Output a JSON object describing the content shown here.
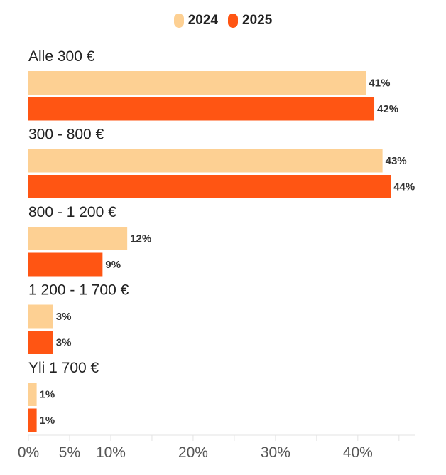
{
  "chart_data": {
    "type": "bar",
    "orientation": "horizontal",
    "categories": [
      "Alle 300 €",
      "300 - 800 €",
      "800 - 1 200 €",
      "1 200 - 1 700 €",
      "Yli 1 700 €"
    ],
    "series": [
      {
        "name": "2024",
        "color": "#FDD093",
        "values": [
          41,
          43,
          12,
          3,
          1
        ],
        "labels": [
          "41%",
          "43%",
          "12%",
          "3%",
          "1%"
        ]
      },
      {
        "name": "2025",
        "color": "#FF5513",
        "values": [
          42,
          44,
          9,
          3,
          1
        ],
        "labels": [
          "42%",
          "44%",
          "9%",
          "3%",
          "1%"
        ]
      }
    ],
    "xlim": [
      0,
      47
    ],
    "xticks": [
      0,
      5,
      10,
      20,
      30,
      40
    ],
    "xtick_labels": [
      "0%",
      "5%",
      "10%",
      "20%",
      "30%",
      "40%"
    ],
    "legend_position": "top-center",
    "grid": false
  }
}
